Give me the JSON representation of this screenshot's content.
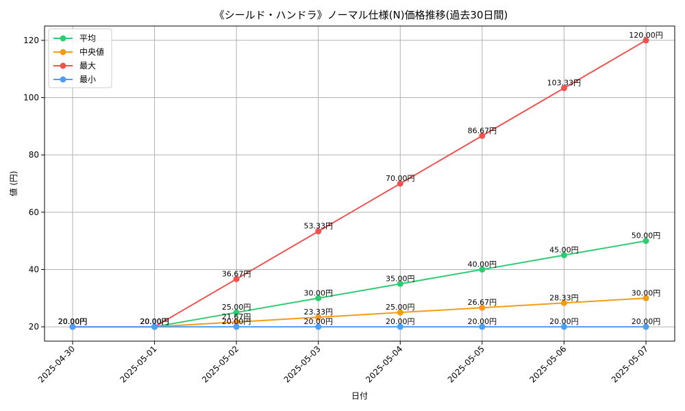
{
  "chart_data": {
    "type": "line",
    "title": "《シールド・ハンドラ》ノーマル仕様(N)価格推移(過去30日間)",
    "xlabel": "日付",
    "ylabel": "値 (円)",
    "categories": [
      "2025-04-30",
      "2025-05-01",
      "2025-05-02",
      "2025-05-03",
      "2025-05-04",
      "2025-05-05",
      "2025-05-06",
      "2025-05-07"
    ],
    "ylim": [
      15,
      125
    ],
    "yticks": [
      20,
      40,
      60,
      80,
      100,
      120
    ],
    "grid": true,
    "legend_position": "top-left",
    "value_suffix": "円",
    "series": [
      {
        "name": "平均",
        "color": "#2ecc71",
        "values": [
          20.0,
          20.0,
          25.0,
          30.0,
          35.0,
          40.0,
          45.0,
          50.0
        ]
      },
      {
        "name": "中央値",
        "color": "#f39c12",
        "values": [
          20.0,
          20.0,
          21.67,
          23.33,
          25.0,
          26.67,
          28.33,
          30.0
        ]
      },
      {
        "name": "最大",
        "color": "#ef5350",
        "values": [
          20.0,
          20.0,
          36.67,
          53.33,
          70.0,
          86.67,
          103.33,
          120.0
        ]
      },
      {
        "name": "最小",
        "color": "#4d9ef5",
        "values": [
          20.0,
          20.0,
          20.0,
          20.0,
          20.0,
          20.0,
          20.0,
          20.0
        ]
      }
    ]
  }
}
